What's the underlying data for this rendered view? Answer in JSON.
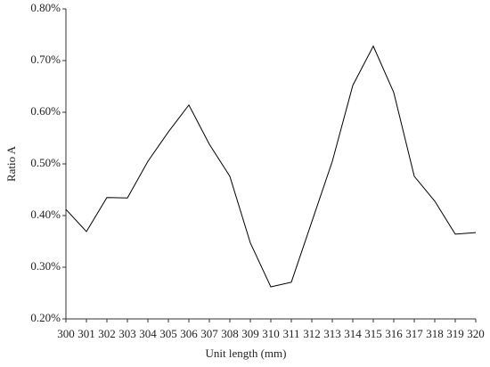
{
  "chart_data": {
    "type": "line",
    "x_label": "Unit length (mm)",
    "y_label": "Ratio A",
    "x": [
      300,
      301,
      302,
      303,
      304,
      305,
      306,
      307,
      308,
      309,
      310,
      311,
      312,
      313,
      314,
      315,
      316,
      317,
      318,
      319,
      320
    ],
    "series": [
      {
        "color": "#000000",
        "values": [
          0.412,
          0.369,
          0.435,
          0.434,
          0.505,
          0.562,
          0.614,
          0.538,
          0.476,
          0.347,
          0.262,
          0.271,
          0.388,
          0.505,
          0.652,
          0.728,
          0.638,
          0.476,
          0.428,
          0.364,
          0.367
        ]
      }
    ],
    "xlim": [
      300,
      320
    ],
    "xticks": [
      300,
      301,
      302,
      303,
      304,
      305,
      306,
      307,
      308,
      309,
      310,
      311,
      312,
      313,
      314,
      315,
      316,
      317,
      318,
      319,
      320
    ],
    "ylim": [
      0.2,
      0.8
    ],
    "yticks": [
      {
        "value": 0.2,
        "label": "0.20%"
      },
      {
        "value": 0.3,
        "label": "0.30%"
      },
      {
        "value": 0.4,
        "label": "0.40%"
      },
      {
        "value": 0.5,
        "label": "0.50%"
      },
      {
        "value": 0.6,
        "label": "0.60%"
      },
      {
        "value": 0.7,
        "label": "0.70%"
      },
      {
        "value": 0.8,
        "label": "0.80%"
      }
    ],
    "grid": false
  }
}
